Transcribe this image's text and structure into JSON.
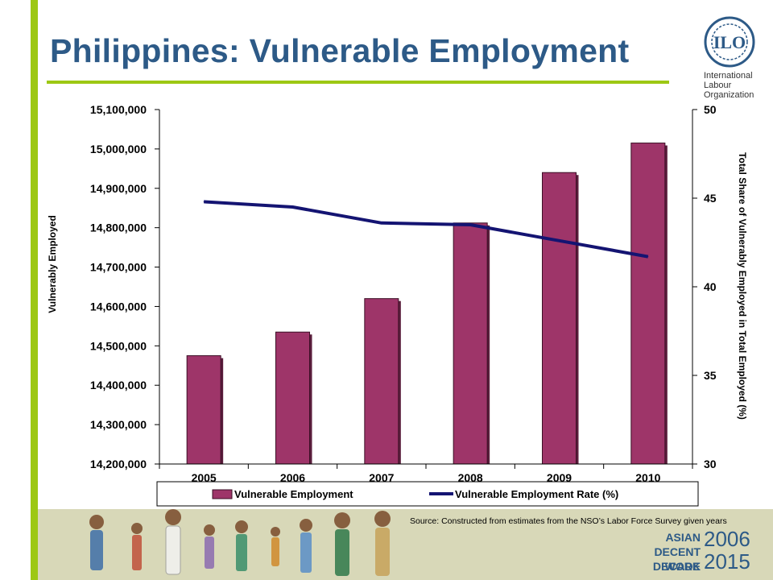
{
  "slide": {
    "title": "Philippines: Vulnerable Employment",
    "source": "Source: Constructed from estimates from the NSO’s Labor Force Survey given years",
    "logo": {
      "emblem": "ILO",
      "lines": [
        "International",
        "Labour",
        "Organization"
      ]
    },
    "footer": {
      "asian": "ASIAN",
      "decent_work": "DECENT WORK",
      "decade": "DECADE",
      "year_start": "2006",
      "year_end": "2015"
    }
  },
  "colors": {
    "accent_green": "#9dc814",
    "title_blue": "#2d5a87",
    "bar_fill": "#9e3569",
    "line_color": "#141472"
  },
  "chart_data": {
    "type": "bar",
    "categories": [
      "2005",
      "2006",
      "2007",
      "2008",
      "2009",
      "2010"
    ],
    "series": [
      {
        "name": "Vulnerable Employment",
        "type": "bar",
        "axis": "left",
        "values": [
          14475000,
          14535000,
          14620000,
          14812000,
          14940000,
          15015000
        ]
      },
      {
        "name": "Vulnerable Employment Rate (%)",
        "type": "line",
        "axis": "right",
        "values": [
          44.8,
          44.5,
          43.6,
          43.5,
          42.6,
          41.7
        ]
      }
    ],
    "ylabel": "Vulnerably Employed",
    "y2label": "Total Share of Vulnerably Employed in Total Employed (%)",
    "ylim": [
      14200000,
      15100000
    ],
    "y2lim": [
      30,
      50
    ],
    "yticks": [
      "14,200,000",
      "14,300,000",
      "14,400,000",
      "14,500,000",
      "14,600,000",
      "14,700,000",
      "14,800,000",
      "14,900,000",
      "15,000,000",
      "15,100,000"
    ],
    "y2ticks": [
      "30",
      "35",
      "40",
      "45",
      "50"
    ],
    "legend_position": "bottom",
    "grid": false
  }
}
